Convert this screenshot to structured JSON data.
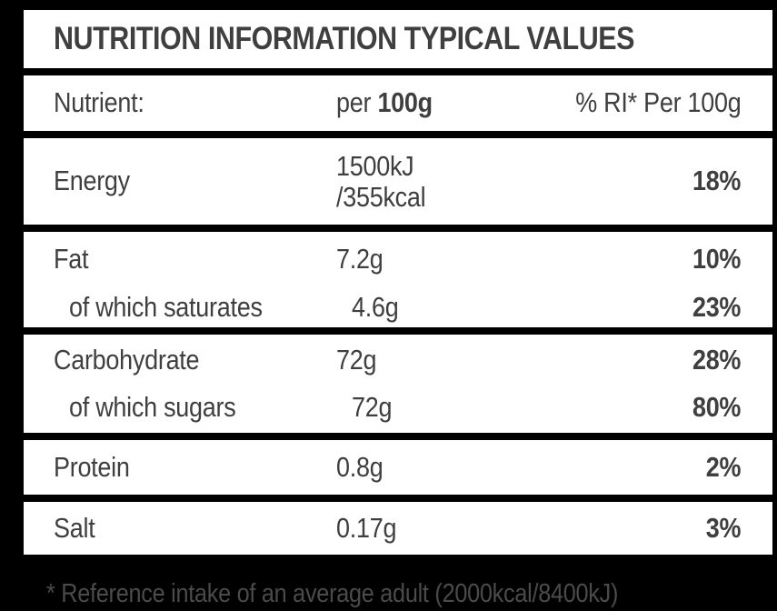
{
  "title": "NUTRITION INFORMATION TYPICAL VALUES",
  "columns": {
    "nutrient": "Nutrient:",
    "per_label": "per",
    "per_amount": "100g",
    "ri_label": "% RI* Per 100g"
  },
  "rows": {
    "energy": {
      "label": "Energy",
      "value_line1": "1500kJ",
      "value_line2": "/355kcal",
      "ri": "18%"
    },
    "fat": {
      "label": "Fat",
      "value": "7.2g",
      "ri": "10%"
    },
    "saturates": {
      "label": "of which saturates",
      "value": "4.6g",
      "ri": "23%"
    },
    "carbohydrate": {
      "label": "Carbohydrate",
      "value": "72g",
      "ri": "28%"
    },
    "sugars": {
      "label": "of which sugars",
      "value": "72g",
      "ri": "80%"
    },
    "protein": {
      "label": "Protein",
      "value": "0.8g",
      "ri": "2%"
    },
    "salt": {
      "label": "Salt",
      "value": "0.17g",
      "ri": "3%"
    }
  },
  "footnote": "* Reference intake of an average adult (2000kcal/8400kJ)",
  "colors": {
    "background": "#000000",
    "card": "#ffffff",
    "text": "#3f3f3f",
    "footnote_text": "#4b4b4b"
  }
}
